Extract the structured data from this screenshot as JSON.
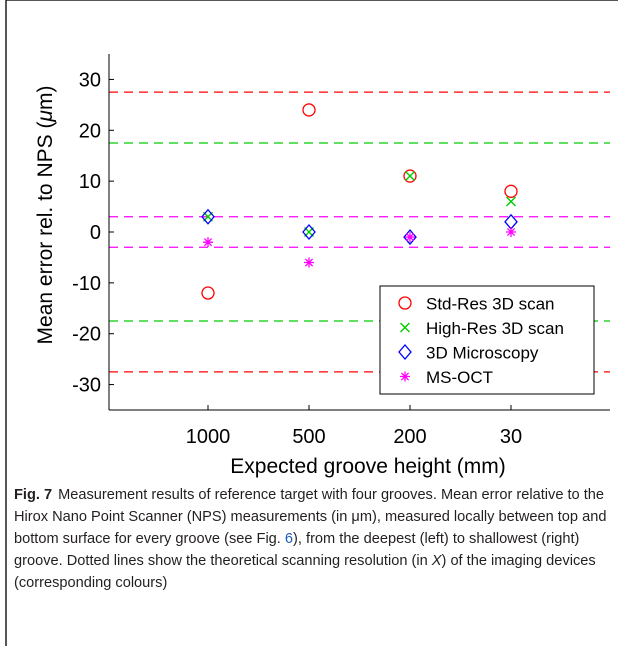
{
  "chart_data": {
    "type": "scatter",
    "categories": [
      "1000",
      "500",
      "200",
      "30"
    ],
    "xlabel": "Expected groove height (mm)",
    "ylabel_main": "Mean error rel. to NPS (",
    "ylabel_mu": "μ",
    "ylabel_tail": "m)",
    "ylim": [
      -35,
      35
    ],
    "yticks": [
      30,
      20,
      10,
      0,
      -10,
      -20,
      -30
    ],
    "ytick_labels": [
      "30",
      "20",
      "10",
      "0",
      "-10",
      "-20",
      "-30"
    ],
    "grid": false,
    "legend_position": "bottom-right",
    "series": [
      {
        "name": "Std-Res 3D scan",
        "marker": "circle",
        "color": "#ff0000",
        "values": [
          -12,
          24,
          11,
          8
        ]
      },
      {
        "name": "High-Res 3D scan",
        "marker": "x",
        "color": "#00cc00",
        "values": [
          3,
          0,
          11,
          6
        ]
      },
      {
        "name": "3D Microscopy",
        "marker": "diamond",
        "color": "#0000ff",
        "values": [
          3,
          0,
          -1,
          2
        ]
      },
      {
        "name": "MS-OCT",
        "marker": "asterisk",
        "color": "#ff00ff",
        "values": [
          -2,
          -6,
          -1,
          0
        ]
      }
    ],
    "reference_lines": [
      {
        "series": "Std-Res 3D scan",
        "color": "#ff0000",
        "values": [
          27.5,
          -27.5
        ]
      },
      {
        "series": "High-Res 3D scan",
        "color": "#00cc00",
        "values": [
          17.5,
          -17.5
        ]
      },
      {
        "series": "MS-OCT",
        "color": "#ff00ff",
        "values": [
          3,
          -3
        ]
      }
    ]
  },
  "caption": {
    "label": "Fig. 7",
    "part1": "Measurement results of reference target with four grooves. Mean error relative to the Hirox Nano Point Scanner (NPS) measurements (in ",
    "unit": "μm",
    "part2": "), measured locally between top and bottom surface for every groove (see Fig. ",
    "ref": "6",
    "part3": "), from the deepest (left) to shallowest (right) groove. Dotted lines show the theoretical scanning resolution (in ",
    "axis": "X",
    "part4": ") of the imaging devices (corresponding colours)"
  }
}
